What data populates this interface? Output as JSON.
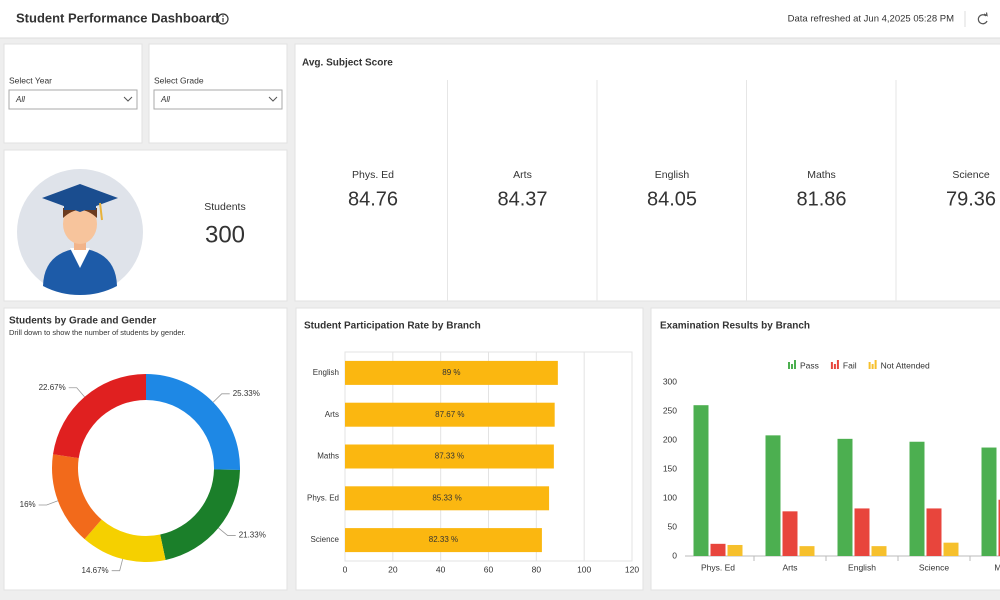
{
  "header": {
    "title": "Student Performance Dashboard",
    "refresh_text": "Data refreshed at Jun 4,2025 05:28 PM"
  },
  "filters": [
    {
      "label": "Select Year",
      "value": "All"
    },
    {
      "label": "Select Grade",
      "value": "All"
    }
  ],
  "students": {
    "label": "Students",
    "value": 300
  },
  "avg_subject_score": {
    "title": "Avg. Subject Score",
    "subjects": [
      {
        "name": "Phys. Ed",
        "score": 84.76
      },
      {
        "name": "Arts",
        "score": 84.37
      },
      {
        "name": "English",
        "score": 84.05
      },
      {
        "name": "Maths",
        "score": 81.86
      },
      {
        "name": "Science",
        "score": 79.36
      }
    ]
  },
  "chart_data": [
    {
      "type": "donut",
      "title": "Students by Grade and Gender",
      "subtitle": "Drill down to show the number of students by gender.",
      "values": [
        25.33,
        21.33,
        14.67,
        16,
        22.67
      ],
      "value_labels": [
        "25.33%",
        "21.33%",
        "14.67%",
        "16%",
        "22.67%"
      ],
      "colors": [
        "#1e88e5",
        "#1b7f2a",
        "#f5d000",
        "#f26a1b",
        "#e02020"
      ]
    },
    {
      "type": "bar",
      "orientation": "horizontal",
      "title": "Student Participation Rate by Branch",
      "categories": [
        "English",
        "Arts",
        "Maths",
        "Phys. Ed",
        "Science"
      ],
      "values": [
        89,
        87.67,
        87.33,
        85.33,
        82.33
      ],
      "value_labels": [
        "89 %",
        "87.67 %",
        "87.33 %",
        "85.33 %",
        "82.33 %"
      ],
      "color": "#fbb710",
      "xlim": [
        0,
        120
      ],
      "xticks": [
        0,
        20,
        40,
        60,
        80,
        100,
        120
      ],
      "grid": true
    },
    {
      "type": "grouped-bar",
      "title": "Examination Results by Branch",
      "categories": [
        "Phys. Ed",
        "Arts",
        "English",
        "Science",
        "Maths"
      ],
      "series": [
        {
          "name": "Pass",
          "color": "#4caf50",
          "values": [
            260,
            208,
            202,
            197,
            187
          ]
        },
        {
          "name": "Fail",
          "color": "#e8453c",
          "values": [
            21,
            77,
            82,
            82,
            97
          ]
        },
        {
          "name": "Not Attended",
          "color": "#f6c02c",
          "values": [
            19,
            17,
            17,
            23,
            null
          ]
        }
      ],
      "ylim": [
        0,
        300
      ],
      "yticks": [
        0,
        50,
        100,
        150,
        200,
        250,
        300
      ],
      "grid": false,
      "legend": "top"
    }
  ]
}
